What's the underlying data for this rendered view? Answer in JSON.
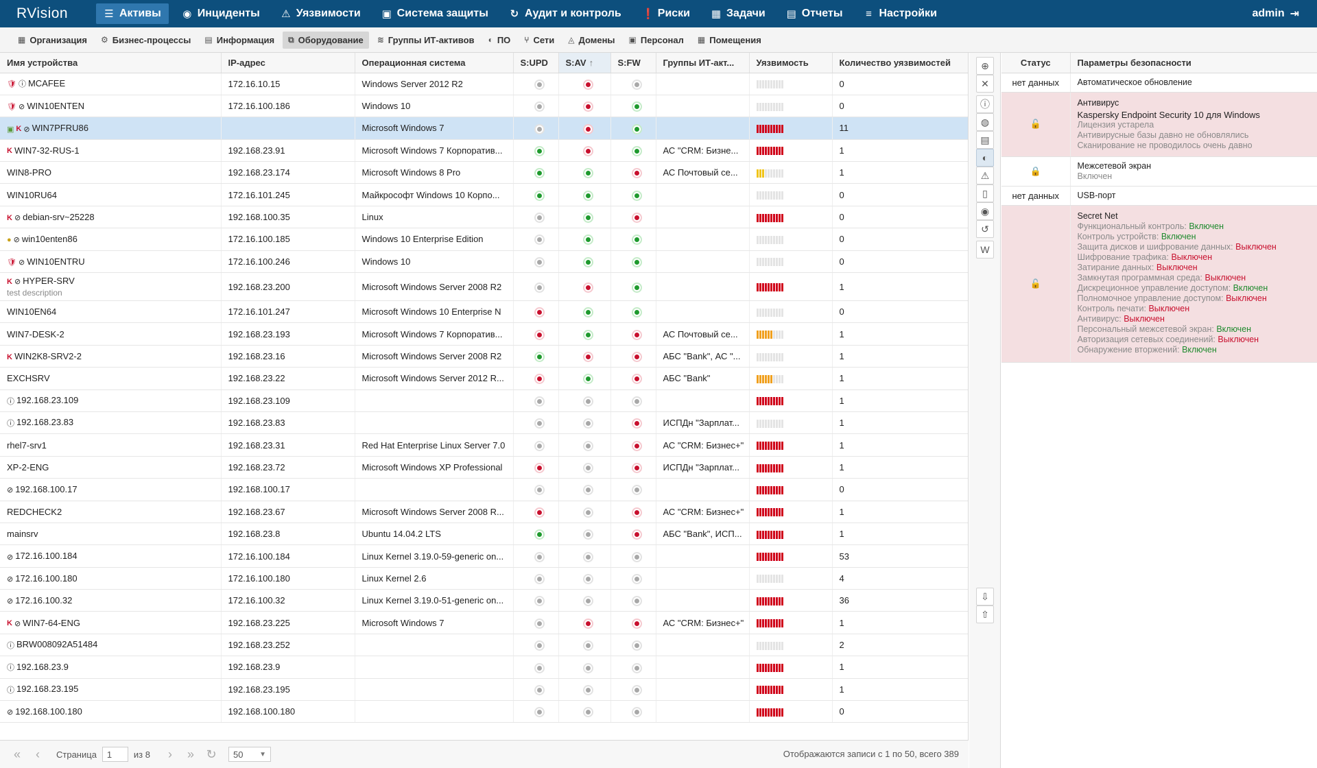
{
  "app": {
    "logo": "RVision",
    "user": "admin"
  },
  "topnav": [
    {
      "label": "Активы",
      "icon": "database-icon",
      "glyph": "☰",
      "active": true
    },
    {
      "label": "Инциденты",
      "icon": "target-icon",
      "glyph": "◉",
      "active": false
    },
    {
      "label": "Уязвимости",
      "icon": "warning-icon",
      "glyph": "⚠",
      "active": false
    },
    {
      "label": "Система защиты",
      "icon": "windows-icon",
      "glyph": "▣",
      "active": false
    },
    {
      "label": "Аудит и контроль",
      "icon": "refresh-icon",
      "glyph": "↻",
      "active": false
    },
    {
      "label": "Риски",
      "icon": "alert-icon",
      "glyph": "❗",
      "active": false
    },
    {
      "label": "Задачи",
      "icon": "tasks-icon",
      "glyph": "▦",
      "active": false
    },
    {
      "label": "Отчеты",
      "icon": "report-icon",
      "glyph": "▤",
      "active": false
    },
    {
      "label": "Настройки",
      "icon": "settings-icon",
      "glyph": "≡",
      "active": false
    }
  ],
  "subnav": [
    {
      "label": "Организация",
      "icon": "building-icon",
      "glyph": "▦",
      "active": false
    },
    {
      "label": "Бизнес-процессы",
      "icon": "gear-icon",
      "glyph": "⚙",
      "active": false
    },
    {
      "label": "Информация",
      "icon": "document-icon",
      "glyph": "▤",
      "active": false
    },
    {
      "label": "Оборудование",
      "icon": "hardware-icon",
      "glyph": "⧉",
      "active": true
    },
    {
      "label": "Группы ИТ-активов",
      "icon": "layers-icon",
      "glyph": "≋",
      "active": false
    },
    {
      "label": "ПО",
      "icon": "software-icon",
      "glyph": "◐",
      "active": false
    },
    {
      "label": "Сети",
      "icon": "network-icon",
      "glyph": "⑂",
      "active": false
    },
    {
      "label": "Домены",
      "icon": "domain-icon",
      "glyph": "◬",
      "active": false
    },
    {
      "label": "Персонал",
      "icon": "person-icon",
      "glyph": "▣",
      "active": false
    },
    {
      "label": "Помещения",
      "icon": "rooms-icon",
      "glyph": "▦",
      "active": false
    }
  ],
  "grid": {
    "columns": [
      "Имя устройства",
      "IP-адрес",
      "Операционная система",
      "S:UPD",
      "S:AV",
      "S:FW",
      "Группы ИТ-акт...",
      "Уязвимость",
      "Количество уязвимостей"
    ],
    "sort_column": "S:AV",
    "sort_arrow": "↑",
    "rows": [
      {
        "icons": [
          "shield",
          "warn"
        ],
        "name": "MCAFEE",
        "ip": "172.16.10.15",
        "os": "Windows Server 2012 R2",
        "upd": "grey",
        "av": "red",
        "fw": "grey",
        "group": "",
        "vuln": "empty",
        "count": "0"
      },
      {
        "icons": [
          "shield",
          "nb"
        ],
        "name": "WIN10ENTEN",
        "ip": "172.16.100.186",
        "os": "Windows 10",
        "upd": "grey",
        "av": "red",
        "fw": "green",
        "group": "",
        "vuln": "empty",
        "count": "0"
      },
      {
        "icons": [
          "cam",
          "k",
          "nb"
        ],
        "name": "WIN7PFRU86",
        "ip": "",
        "os": "Microsoft Windows 7",
        "upd": "grey",
        "av": "red",
        "fw": "green",
        "group": "",
        "vuln": "red",
        "count": "11",
        "selected": true
      },
      {
        "icons": [
          "k"
        ],
        "name": "WIN7-32-RUS-1",
        "ip": "192.168.23.91",
        "os": "Microsoft Windows 7 Корпоратив...",
        "upd": "green",
        "av": "red",
        "fw": "green",
        "group": "АС \"CRM: Бизне...",
        "vuln": "red",
        "count": "1"
      },
      {
        "icons": [],
        "name": "WIN8-PRO",
        "ip": "192.168.23.174",
        "os": "Microsoft Windows 8 Pro",
        "upd": "green",
        "av": "green",
        "fw": "red",
        "group": "АС Почтовый се...",
        "vuln": "yellow",
        "count": "1"
      },
      {
        "icons": [],
        "name": "WIN10RU64",
        "ip": "172.16.101.245",
        "os": "Майкрософт Windows 10 Корпо...",
        "upd": "green",
        "av": "green",
        "fw": "green",
        "group": "",
        "vuln": "empty",
        "count": "0"
      },
      {
        "icons": [
          "k",
          "nb"
        ],
        "name": "debian-srv~25228",
        "ip": "192.168.100.35",
        "os": "Linux",
        "upd": "grey",
        "av": "green",
        "fw": "red",
        "group": "",
        "vuln": "red",
        "count": "0"
      },
      {
        "icons": [
          "yl",
          "nb"
        ],
        "name": "win10enten86",
        "ip": "172.16.100.185",
        "os": "Windows 10 Enterprise Edition",
        "upd": "grey",
        "av": "green",
        "fw": "green",
        "group": "",
        "vuln": "empty",
        "count": "0"
      },
      {
        "icons": [
          "shield",
          "nb"
        ],
        "name": "WIN10ENTRU",
        "ip": "172.16.100.246",
        "os": "Windows 10",
        "upd": "grey",
        "av": "green",
        "fw": "green",
        "group": "",
        "vuln": "empty",
        "count": "0"
      },
      {
        "icons": [
          "k",
          "nb"
        ],
        "name": "HYPER-SRV",
        "desc": "test description",
        "ip": "192.168.23.200",
        "os": "Microsoft Windows Server 2008 R2",
        "upd": "grey",
        "av": "red",
        "fw": "green",
        "group": "",
        "vuln": "red",
        "count": "1",
        "tall": true
      },
      {
        "icons": [],
        "name": "WIN10EN64",
        "ip": "172.16.101.247",
        "os": "Microsoft Windows 10 Enterprise N",
        "upd": "red",
        "av": "green",
        "fw": "green",
        "group": "",
        "vuln": "empty",
        "count": "0"
      },
      {
        "icons": [],
        "name": "WIN7-DESK-2",
        "ip": "192.168.23.193",
        "os": "Microsoft Windows 7 Корпоратив...",
        "upd": "red",
        "av": "green",
        "fw": "red",
        "group": "АС Почтовый се...",
        "vuln": "orange",
        "count": "1"
      },
      {
        "icons": [
          "k"
        ],
        "name": "WIN2K8-SRV2-2",
        "ip": "192.168.23.16",
        "os": "Microsoft Windows Server 2008 R2",
        "upd": "green",
        "av": "red",
        "fw": "red",
        "group": "АБС \"Bank\", АС \"...",
        "vuln": "empty",
        "count": "1"
      },
      {
        "icons": [],
        "name": "EXCHSRV",
        "ip": "192.168.23.22",
        "os": "Microsoft Windows Server 2012 R...",
        "upd": "red",
        "av": "green",
        "fw": "red",
        "group": "АБС \"Bank\"",
        "vuln": "orange",
        "count": "1"
      },
      {
        "icons": [
          "warn"
        ],
        "name": "192.168.23.109",
        "ip": "192.168.23.109",
        "os": "",
        "upd": "grey",
        "av": "grey",
        "fw": "grey",
        "group": "",
        "vuln": "red",
        "count": "1"
      },
      {
        "icons": [
          "warn"
        ],
        "name": "192.168.23.83",
        "ip": "192.168.23.83",
        "os": "",
        "upd": "grey",
        "av": "grey",
        "fw": "red",
        "group": "ИСПДн \"Зарплат...",
        "vuln": "empty",
        "count": "1"
      },
      {
        "icons": [],
        "name": "rhel7-srv1",
        "ip": "192.168.23.31",
        "os": "Red Hat Enterprise Linux Server 7.0",
        "upd": "grey",
        "av": "grey",
        "fw": "red",
        "group": "АС \"CRM: Бизнес+\"",
        "vuln": "red",
        "count": "1"
      },
      {
        "icons": [],
        "name": "XP-2-ENG",
        "ip": "192.168.23.72",
        "os": "Microsoft Windows XP Professional",
        "upd": "red",
        "av": "grey",
        "fw": "red",
        "group": "ИСПДн \"Зарплат...",
        "vuln": "red",
        "count": "1"
      },
      {
        "icons": [
          "nb"
        ],
        "name": "192.168.100.17",
        "ip": "192.168.100.17",
        "os": "",
        "upd": "grey",
        "av": "grey",
        "fw": "grey",
        "group": "",
        "vuln": "red",
        "count": "0"
      },
      {
        "icons": [],
        "name": "REDCHECK2",
        "ip": "192.168.23.67",
        "os": "Microsoft Windows Server 2008 R...",
        "upd": "red",
        "av": "grey",
        "fw": "red",
        "group": "АС \"CRM: Бизнес+\"",
        "vuln": "red",
        "count": "1"
      },
      {
        "icons": [],
        "name": "mainsrv",
        "ip": "192.168.23.8",
        "os": "Ubuntu 14.04.2 LTS",
        "upd": "green",
        "av": "grey",
        "fw": "red",
        "group": "АБС \"Bank\", ИСП...",
        "vuln": "red",
        "count": "1"
      },
      {
        "icons": [
          "nb"
        ],
        "name": "172.16.100.184",
        "ip": "172.16.100.184",
        "os": "Linux Kernel 3.19.0-59-generic on...",
        "upd": "grey",
        "av": "grey",
        "fw": "grey",
        "group": "",
        "vuln": "red",
        "count": "53"
      },
      {
        "icons": [
          "nb"
        ],
        "name": "172.16.100.180",
        "ip": "172.16.100.180",
        "os": "Linux Kernel 2.6",
        "upd": "grey",
        "av": "grey",
        "fw": "grey",
        "group": "",
        "vuln": "empty",
        "count": "4"
      },
      {
        "icons": [
          "nb"
        ],
        "name": "172.16.100.32",
        "ip": "172.16.100.32",
        "os": "Linux Kernel 3.19.0-51-generic on...",
        "upd": "grey",
        "av": "grey",
        "fw": "grey",
        "group": "",
        "vuln": "red",
        "count": "36"
      },
      {
        "icons": [
          "k",
          "nb"
        ],
        "name": "WIN7-64-ENG",
        "ip": "192.168.23.225",
        "os": "Microsoft Windows 7",
        "upd": "grey",
        "av": "red",
        "fw": "red",
        "group": "АС \"CRM: Бизнес+\"",
        "vuln": "red",
        "count": "1"
      },
      {
        "icons": [
          "warn"
        ],
        "name": "BRW008092A51484",
        "ip": "192.168.23.252",
        "os": "",
        "upd": "grey",
        "av": "grey",
        "fw": "grey",
        "group": "",
        "vuln": "empty",
        "count": "2"
      },
      {
        "icons": [
          "warn"
        ],
        "name": "192.168.23.9",
        "ip": "192.168.23.9",
        "os": "",
        "upd": "grey",
        "av": "grey",
        "fw": "grey",
        "group": "",
        "vuln": "red",
        "count": "1"
      },
      {
        "icons": [
          "warn"
        ],
        "name": "192.168.23.195",
        "ip": "192.168.23.195",
        "os": "",
        "upd": "grey",
        "av": "grey",
        "fw": "grey",
        "group": "",
        "vuln": "red",
        "count": "1"
      },
      {
        "icons": [
          "nb"
        ],
        "name": "192.168.100.180",
        "ip": "192.168.100.180",
        "os": "",
        "upd": "grey",
        "av": "grey",
        "fw": "grey",
        "group": "",
        "vuln": "red",
        "count": "0"
      }
    ]
  },
  "pager": {
    "page_label": "Страница",
    "page": "1",
    "of_label": "из 8",
    "page_size": "50",
    "summary": "Отображаются записи с 1 по 50, всего 389"
  },
  "toolbar": [
    {
      "name": "add-button",
      "glyph": "⊕"
    },
    {
      "name": "delete-button",
      "glyph": "✕"
    },
    {
      "name": "info-button",
      "glyph": "ⓘ"
    },
    {
      "name": "compass-button",
      "glyph": "◍"
    },
    {
      "name": "card-button",
      "glyph": "▤"
    },
    {
      "name": "security-button",
      "glyph": "◐",
      "active": true
    },
    {
      "name": "warning-button",
      "glyph": "⚠"
    },
    {
      "name": "document-button",
      "glyph": "▯"
    },
    {
      "name": "target-button",
      "glyph": "◉"
    },
    {
      "name": "history-button",
      "glyph": "↺"
    },
    {
      "name": "word-button",
      "glyph": "W"
    },
    {
      "name": "import-button",
      "glyph": "⇩"
    },
    {
      "name": "export-button",
      "glyph": "⇧"
    }
  ],
  "security": {
    "col_status": "Статус",
    "col_params": "Параметры безопасности",
    "items": [
      {
        "status": "нет данных",
        "state": "none",
        "title": "Автоматическое обновление",
        "lines": []
      },
      {
        "status": "",
        "state": "bad",
        "lock": "unlocked",
        "title": "Антивирус",
        "subtitle": "Kaspersky Endpoint Security 10 для Windows",
        "lines": [
          "Лицензия устарела",
          "Антивирусные базы давно не обновлялись",
          "Сканирование не проводилось очень давно"
        ]
      },
      {
        "status": "",
        "state": "ok",
        "lock": "locked",
        "title": "Межсетевой экран",
        "lines": [
          "Включен"
        ]
      },
      {
        "status": "нет данных",
        "state": "none",
        "title": "USB-порт",
        "lines": []
      },
      {
        "status": "",
        "state": "bad",
        "lock": "unlocked",
        "title": "Secret Net",
        "kv": [
          {
            "k": "Функциональный контроль:",
            "v": "Включен",
            "on": true
          },
          {
            "k": "Контроль устройств:",
            "v": "Включен",
            "on": true
          },
          {
            "k": "Защита дисков и шифрование данных:",
            "v": "Выключен",
            "on": false
          },
          {
            "k": "Шифрование трафика:",
            "v": "Выключен",
            "on": false
          },
          {
            "k": "Затирание данных:",
            "v": "Выключен",
            "on": false
          },
          {
            "k": "Замкнутая программная среда:",
            "v": "Выключен",
            "on": false
          },
          {
            "k": "Дискреционное управление доступом:",
            "v": "Включен",
            "on": true
          },
          {
            "k": "Полномочное управление доступом:",
            "v": "Выключен",
            "on": false
          },
          {
            "k": "Контроль печати:",
            "v": "Выключен",
            "on": false
          },
          {
            "k": "Антивирус:",
            "v": "Выключен",
            "on": false
          },
          {
            "k": "Персональный межсетевой экран:",
            "v": "Включен",
            "on": true
          },
          {
            "k": "Авторизация сетевых соединений:",
            "v": "Выключен",
            "on": false
          },
          {
            "k": "Обнаружение вторжений:",
            "v": "Включен",
            "on": true
          }
        ]
      }
    ]
  }
}
